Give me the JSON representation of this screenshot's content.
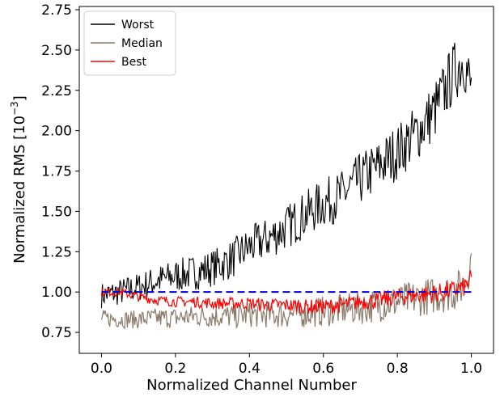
{
  "chart_data": {
    "type": "line",
    "xlabel": "Normalized Channel Number",
    "ylabel": "Normalized RMS [10",
    "ylabel_sup": "−3",
    "ylabel_end": "]",
    "xlim": [
      -0.06,
      1.06
    ],
    "ylim": [
      0.62,
      2.77
    ],
    "x_ticks": [
      0.0,
      0.2,
      0.4,
      0.6,
      0.8,
      1.0
    ],
    "x_tick_labels": [
      "0.0",
      "0.2",
      "0.4",
      "0.6",
      "0.8",
      "1.0"
    ],
    "y_ticks": [
      0.75,
      1.0,
      1.25,
      1.5,
      1.75,
      2.0,
      2.25,
      2.5,
      2.75
    ],
    "y_tick_labels": [
      "0.75",
      "1.00",
      "1.25",
      "1.50",
      "1.75",
      "2.00",
      "2.25",
      "2.50",
      "2.75"
    ],
    "grid": false,
    "legend_position": "top-left",
    "reference_line": {
      "y": 1.0,
      "x_range": [
        0.0,
        1.0
      ],
      "style": "dashed",
      "color": "#0000cc"
    },
    "series": [
      {
        "name": "Worst",
        "color": "#000000",
        "x": [
          0.0,
          0.05,
          0.1,
          0.15,
          0.2,
          0.25,
          0.3,
          0.35,
          0.4,
          0.45,
          0.5,
          0.55,
          0.6,
          0.65,
          0.7,
          0.75,
          0.8,
          0.85,
          0.9,
          0.95,
          0.98,
          1.0
        ],
        "y": [
          0.98,
          1.0,
          1.03,
          1.07,
          1.1,
          1.12,
          1.15,
          1.2,
          1.28,
          1.33,
          1.4,
          1.48,
          1.55,
          1.6,
          1.7,
          1.78,
          1.87,
          1.98,
          2.12,
          2.35,
          2.45,
          2.25
        ],
        "noise": 0.08
      },
      {
        "name": "Median",
        "color": "#8a7a6a",
        "x": [
          0.0,
          0.05,
          0.1,
          0.15,
          0.2,
          0.25,
          0.3,
          0.35,
          0.4,
          0.45,
          0.5,
          0.55,
          0.6,
          0.65,
          0.7,
          0.75,
          0.8,
          0.85,
          0.9,
          0.95,
          0.98,
          1.0
        ],
        "y": [
          0.84,
          0.83,
          0.83,
          0.84,
          0.84,
          0.85,
          0.85,
          0.85,
          0.86,
          0.86,
          0.86,
          0.87,
          0.88,
          0.89,
          0.9,
          0.92,
          0.94,
          0.96,
          0.98,
          1.0,
          1.04,
          1.2
        ],
        "noise": 0.05
      },
      {
        "name": "Best",
        "color": "#ff0000",
        "x": [
          0.0,
          0.05,
          0.1,
          0.15,
          0.2,
          0.25,
          0.3,
          0.35,
          0.4,
          0.45,
          0.5,
          0.55,
          0.6,
          0.65,
          0.7,
          0.75,
          0.8,
          0.85,
          0.9,
          0.95,
          0.98,
          1.0
        ],
        "y": [
          1.0,
          1.0,
          0.97,
          0.95,
          0.94,
          0.94,
          0.93,
          0.93,
          0.93,
          0.92,
          0.92,
          0.91,
          0.91,
          0.92,
          0.94,
          0.95,
          0.97,
          0.98,
          0.99,
          1.01,
          1.03,
          1.08
        ],
        "noise": 0.025
      }
    ]
  }
}
